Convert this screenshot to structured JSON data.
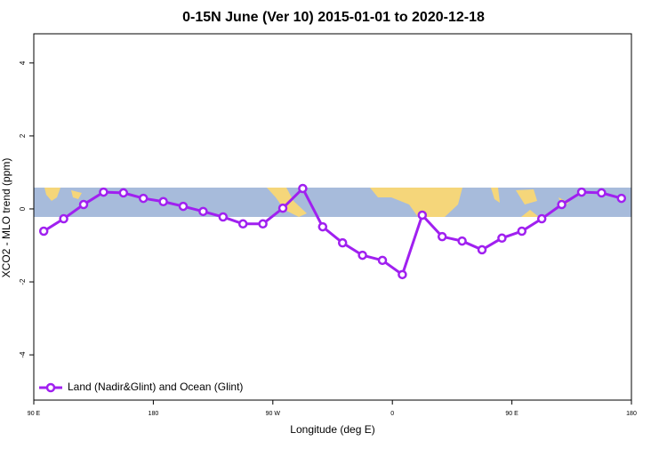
{
  "chart_data": {
    "type": "line",
    "title": "0-15N June (Ver 10)   2015-01-01 to 2020-12-18",
    "x_label": "Longitude (deg E)",
    "y_label": "XCO2 - MLO trend (ppm)",
    "x": [
      97.5,
      112.5,
      127.5,
      142.5,
      157.5,
      172.5,
      187.5,
      202.5,
      217.5,
      232.5,
      247.5,
      262.5,
      277.5,
      292.5,
      307.5,
      322.5,
      337.5,
      352.5,
      367.5,
      382.5,
      397.5,
      412.5,
      427.5,
      442.5,
      457.5,
      472.5,
      487.5,
      502.5,
      517.5,
      532.5
    ],
    "series": [
      {
        "name": "Land (Nadir&Glint) and Ocean (Glint)",
        "color": "#a020f0",
        "values": [
          -0.61,
          -0.27,
          0.12,
          0.46,
          0.44,
          0.29,
          0.2,
          0.07,
          -0.07,
          -0.22,
          -0.41,
          -0.41,
          0.02,
          0.56,
          -0.49,
          -0.93,
          -1.27,
          -1.41,
          -1.8,
          -0.17,
          -0.76,
          -0.88,
          -1.12,
          -0.8,
          -0.61,
          -0.27,
          0.12,
          0.46,
          0.44,
          0.29
        ]
      }
    ],
    "xlim": [
      90,
      540
    ],
    "xticks": [
      {
        "value": 90,
        "label": "90 E"
      },
      180,
      {
        "value": 270,
        "label": "90 W"
      },
      {
        "value": 360,
        "label": "0"
      },
      {
        "value": 450,
        "label": "90 E"
      },
      {
        "value": 540,
        "label": "180"
      }
    ],
    "ylim": [
      -5.24,
      4.8
    ],
    "yticks": [
      -4,
      -2,
      0,
      2,
      4
    ],
    "legend": "bottom-left"
  }
}
